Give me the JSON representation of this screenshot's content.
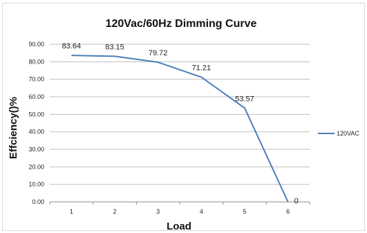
{
  "chart_data": {
    "type": "line",
    "title": "120Vac/60Hz Dimming Curve",
    "xlabel": "Load",
    "ylabel": "Effciency()%",
    "categories": [
      "1",
      "2",
      "3",
      "4",
      "5",
      "6"
    ],
    "series": [
      {
        "name": "120VAC",
        "values": [
          83.64,
          83.15,
          79.72,
          71.21,
          53.57,
          0
        ],
        "labels": [
          "83.64",
          "83.15",
          "79.72",
          "71.21",
          "53.57",
          "0"
        ],
        "color": "#4a7ebb"
      }
    ],
    "ylim": [
      0,
      90
    ],
    "yticks": [
      "0.00",
      "10.00",
      "20.00",
      "30.00",
      "40.00",
      "50.00",
      "60.00",
      "70.00",
      "80.00",
      "90.00"
    ],
    "grid": true,
    "legend": "right"
  }
}
